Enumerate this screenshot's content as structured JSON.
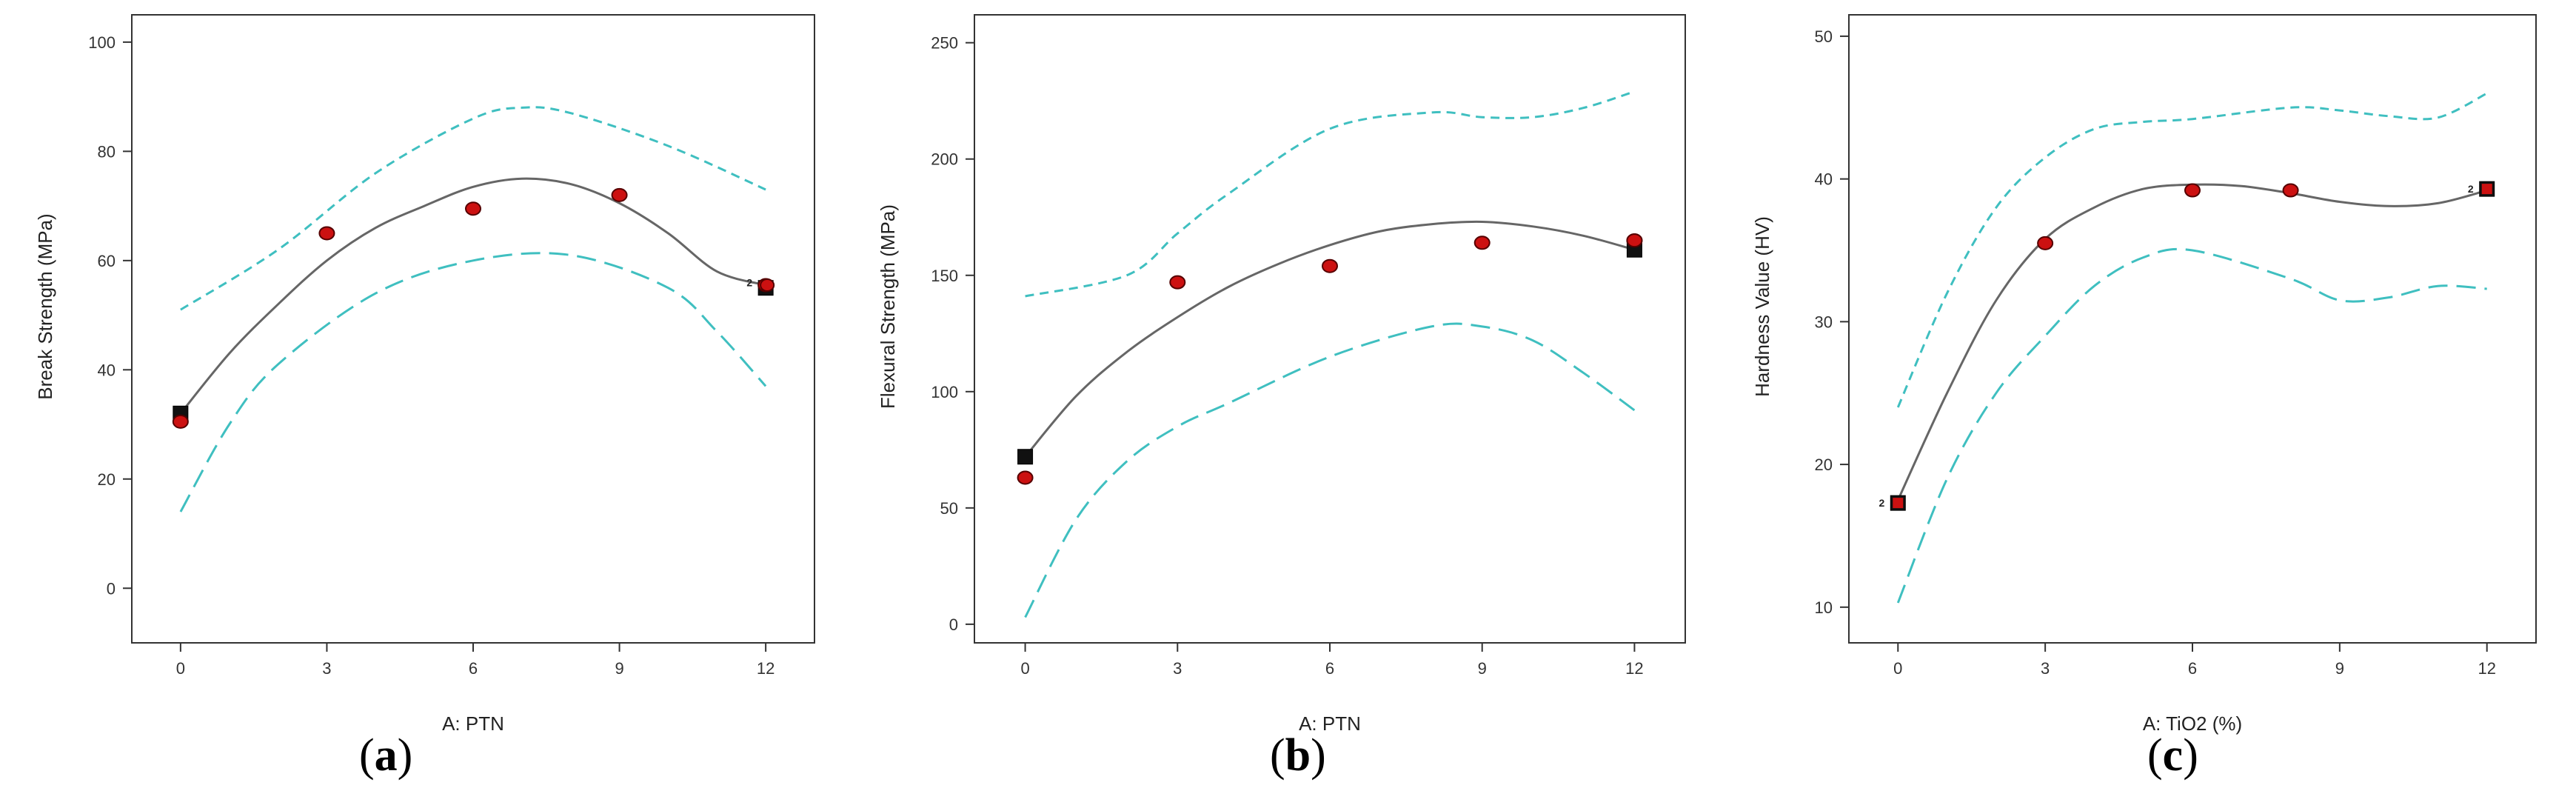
{
  "colors": {
    "ci": "#3fbfc0",
    "fit": "#666666",
    "point_fill": "#cc1111",
    "point_stroke": "#550000",
    "design_fill": "#111111"
  },
  "panels": [
    {
      "label_open": "(",
      "label_letter": "a",
      "label_close": ")"
    },
    {
      "label_open": "(",
      "label_letter": "b",
      "label_close": ")"
    },
    {
      "label_open": "(",
      "label_letter": "c",
      "label_close": ")"
    }
  ],
  "chart_data": [
    {
      "type": "line",
      "title": "",
      "xlabel": "A: PTN",
      "ylabel": "Break Strength (MPa)",
      "xlim": [
        -1,
        13
      ],
      "ylim": [
        -10,
        105
      ],
      "xticks": [
        0,
        3,
        6,
        9,
        12
      ],
      "yticks": [
        0,
        20,
        40,
        60,
        80,
        100
      ],
      "fit": {
        "x": [
          0,
          1,
          2,
          3,
          4,
          5,
          6,
          7,
          8,
          9,
          10,
          11,
          12
        ],
        "y": [
          32,
          43,
          52,
          60,
          66,
          70,
          73.5,
          75,
          74,
          70.5,
          65,
          58,
          55.5
        ]
      },
      "ci_upper": {
        "x": [
          0,
          2,
          4,
          6,
          7,
          8,
          10,
          12
        ],
        "y": [
          51,
          62,
          76,
          86,
          88,
          87,
          81,
          73
        ]
      },
      "ci_lower": {
        "x": [
          0,
          1,
          2,
          4,
          6,
          8,
          10,
          11,
          12
        ],
        "y": [
          14,
          30,
          41,
          54,
          60,
          61,
          55,
          47,
          37
        ]
      },
      "points": {
        "x": [
          0,
          3,
          6,
          9,
          12
        ],
        "y": [
          30.5,
          65,
          69.5,
          72,
          55.5
        ]
      },
      "design_points": {
        "x": [
          0,
          12
        ],
        "y": [
          32,
          55
        ]
      },
      "annotations": [
        {
          "x": 12,
          "y": 56,
          "text": "2"
        }
      ]
    },
    {
      "type": "line",
      "title": "",
      "xlabel": "A: PTN",
      "ylabel": "Flexural Strength (MPa)",
      "xlim": [
        -1,
        13
      ],
      "ylim": [
        -8,
        262
      ],
      "xticks": [
        0,
        3,
        6,
        9,
        12
      ],
      "yticks": [
        0,
        50,
        100,
        150,
        200,
        250
      ],
      "fit": {
        "x": [
          0,
          1,
          2,
          3,
          4,
          5,
          6,
          7,
          8,
          9,
          10,
          11,
          12
        ],
        "y": [
          72,
          98,
          117,
          132,
          145,
          155,
          163,
          169,
          172,
          173,
          171,
          167,
          161
        ]
      },
      "ci_upper": {
        "x": [
          0,
          2,
          3,
          4,
          6,
          8,
          9,
          10,
          11,
          12
        ],
        "y": [
          141,
          150,
          168,
          185,
          213,
          220,
          218,
          218,
          222,
          229
        ]
      },
      "ci_lower": {
        "x": [
          0,
          1,
          2,
          3,
          4,
          6,
          8,
          9,
          10,
          11,
          12
        ],
        "y": [
          3,
          45,
          70,
          85,
          95,
          115,
          128,
          128,
          122,
          108,
          92
        ]
      },
      "points": {
        "x": [
          0,
          3,
          6,
          9,
          12
        ],
        "y": [
          63,
          147,
          154,
          164,
          165
        ]
      },
      "design_points": {
        "x": [
          0,
          12
        ],
        "y": [
          72,
          161
        ]
      },
      "annotations": []
    },
    {
      "type": "line",
      "title": "",
      "xlabel": "A: TiO2 (%)",
      "ylabel": "Hardness Value (HV)",
      "xlim": [
        -1,
        13
      ],
      "ylim": [
        7.5,
        51.5
      ],
      "xticks": [
        0,
        3,
        6,
        9,
        12
      ],
      "yticks": [
        10,
        20,
        30,
        40,
        50
      ],
      "fit": {
        "x": [
          0,
          1,
          2,
          3,
          4,
          5,
          6,
          7,
          8,
          9,
          10,
          11,
          12
        ],
        "y": [
          17.5,
          25,
          31.5,
          35.8,
          38,
          39.3,
          39.6,
          39.5,
          39,
          38.4,
          38.1,
          38.3,
          39.2
        ]
      },
      "ci_upper": {
        "x": [
          0,
          1,
          2,
          3,
          4,
          5,
          6,
          8,
          9,
          10,
          11,
          12
        ],
        "y": [
          24,
          32,
          38,
          41.5,
          43.5,
          44,
          44.2,
          45,
          44.8,
          44.4,
          44.3,
          46
        ]
      },
      "ci_lower": {
        "x": [
          0,
          1,
          2,
          3,
          4,
          5,
          6,
          8,
          9,
          10,
          11,
          12
        ],
        "y": [
          10.3,
          19,
          25,
          29,
          32.5,
          34.5,
          35,
          33,
          31.5,
          31.7,
          32.5,
          32.3
        ]
      },
      "points": {
        "x": [
          3,
          6,
          8
        ],
        "y": [
          35.5,
          39.2,
          39.2
        ]
      },
      "design_points": {
        "x": [
          0,
          12
        ],
        "y": [
          17.3,
          39.3
        ]
      },
      "annotations": [
        {
          "x": 0,
          "y": 17.3,
          "text": "2",
          "side": "left"
        },
        {
          "x": 12,
          "y": 39.3,
          "text": "2",
          "side": "left"
        }
      ]
    }
  ]
}
